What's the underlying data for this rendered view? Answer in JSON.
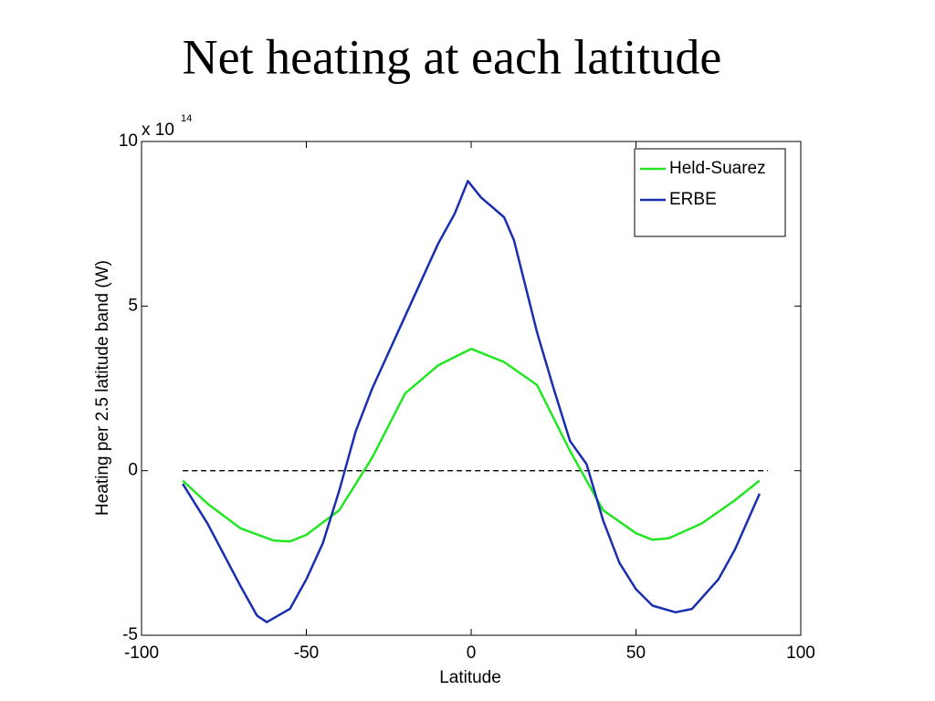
{
  "chart_data": {
    "type": "line",
    "title": "Net heating at each latitude",
    "xlabel": "Latitude",
    "ylabel": "Heating per 2.5 latitude band (W)",
    "y_multiplier": {
      "base": "x 10",
      "exponent": "14"
    },
    "xlim": [
      -100,
      100
    ],
    "ylim": [
      -5,
      10
    ],
    "xticks": [
      -100,
      -50,
      0,
      50,
      100
    ],
    "yticks": [
      -5,
      0,
      5,
      10
    ],
    "grid": false,
    "legend": "upper right",
    "zero_line": {
      "y": 0,
      "x": [
        -87.5,
        90
      ],
      "color": "#000000"
    },
    "series": [
      {
        "name": "Held-Suarez",
        "color": "#22e622",
        "x": [
          -87.5,
          -80,
          -70,
          -60,
          -55,
          -50,
          -40,
          -30,
          -20,
          -10,
          0,
          10,
          20,
          30,
          40,
          50,
          55,
          60,
          70,
          80,
          87.5
        ],
        "values": [
          -0.3,
          -1.0,
          -1.75,
          -2.12,
          -2.15,
          -1.95,
          -1.2,
          0.4,
          2.35,
          3.2,
          3.7,
          3.3,
          2.6,
          0.6,
          -1.2,
          -1.9,
          -2.1,
          -2.05,
          -1.6,
          -0.9,
          -0.3
        ]
      },
      {
        "name": "ERBE",
        "color": "#1a2eb0",
        "x": [
          -87.5,
          -80,
          -70,
          -65,
          -62,
          -55,
          -50,
          -45,
          -40,
          -35,
          -30,
          -20,
          -10,
          -5,
          -1,
          3,
          10,
          13,
          20,
          25,
          30,
          35,
          40,
          45,
          50,
          55,
          62,
          67,
          75,
          80,
          87.5
        ],
        "values": [
          -0.4,
          -1.6,
          -3.5,
          -4.4,
          -4.6,
          -4.2,
          -3.3,
          -2.2,
          -0.6,
          1.2,
          2.5,
          4.7,
          6.9,
          7.8,
          8.8,
          8.3,
          7.7,
          7.0,
          4.2,
          2.5,
          0.9,
          0.2,
          -1.5,
          -2.8,
          -3.6,
          -4.1,
          -4.3,
          -4.2,
          -3.3,
          -2.4,
          -0.7
        ]
      }
    ]
  }
}
